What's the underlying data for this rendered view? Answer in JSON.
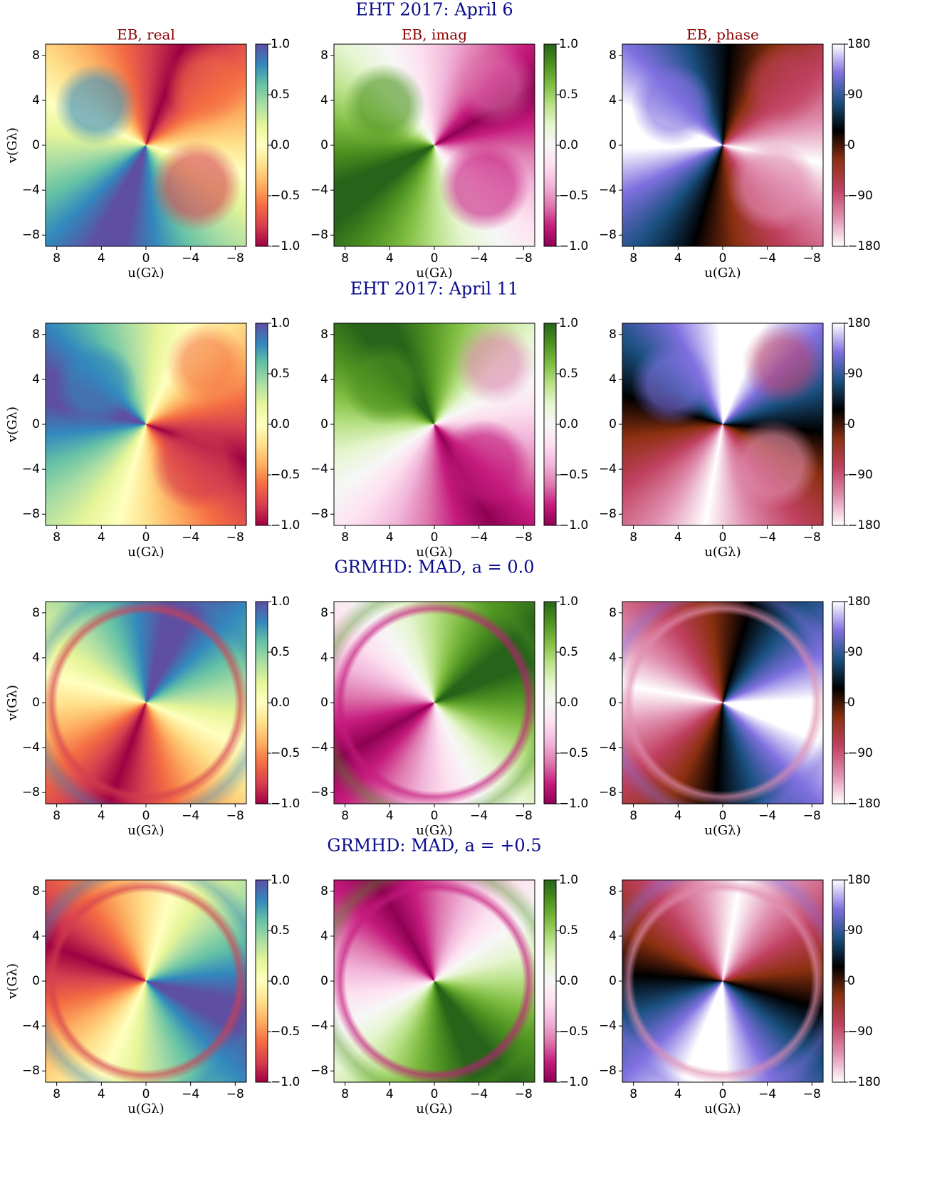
{
  "row_titles": [
    "EHT 2017: April 6",
    "EHT 2017: April 11",
    "GRMHD: MAD, a = 0.0",
    "GRMHD: MAD, a = +0.5"
  ],
  "chart_data": [
    {
      "type": "heatmap",
      "title": "EB, real",
      "xlabel": "u(Gλ)",
      "ylabel": "v(Gλ)",
      "xlim": [
        9,
        -9
      ],
      "ylim": [
        -9,
        9
      ],
      "xticks": [
        8,
        4,
        0,
        {
          "value": -4,
          "label": "−4"
        },
        {
          "value": -8,
          "label": "−8"
        }
      ],
      "yticks": [
        {
          "value": -8,
          "label": "−8"
        },
        {
          "value": -4,
          "label": "−4"
        },
        0,
        4,
        8
      ],
      "clim": [
        -1,
        1
      ],
      "cticks": [
        {
          "value": -1,
          "label": "−1.0"
        },
        {
          "value": -0.5,
          "label": "−0.5"
        },
        {
          "value": 0,
          "label": "0.0"
        },
        0.5,
        {
          "value": 1,
          "label": "1.0"
        }
      ],
      "colormap": [
        "#9e0142",
        "#d53e4f",
        "#f46d43",
        "#fdae61",
        "#fee08b",
        "#ffffbf",
        "#e6f598",
        "#abdda4",
        "#66c2a5",
        "#3288bd",
        "#5e4fa2"
      ]
    },
    {
      "type": "heatmap",
      "title": "EB, imag",
      "xlabel": "u(Gλ)",
      "xlim": [
        9,
        -9
      ],
      "ylim": [
        -9,
        9
      ],
      "xticks": [
        8,
        4,
        0,
        {
          "value": -4,
          "label": "−4"
        },
        {
          "value": -8,
          "label": "−8"
        }
      ],
      "yticks": [
        {
          "value": -8,
          "label": "−8"
        },
        {
          "value": -4,
          "label": "−4"
        },
        0,
        4,
        8
      ],
      "clim": [
        -1,
        1
      ],
      "cticks": [
        {
          "value": -1,
          "label": "−1.0"
        },
        {
          "value": -0.5,
          "label": "−0.5"
        },
        {
          "value": 0,
          "label": "0.0"
        },
        0.5,
        {
          "value": 1,
          "label": "1.0"
        }
      ],
      "colormap": [
        "#8e0152",
        "#c51b7d",
        "#de77ae",
        "#f1b6da",
        "#fde0ef",
        "#f7f7f7",
        "#e6f5d0",
        "#b8e186",
        "#7fbc41",
        "#4d9221",
        "#276419"
      ]
    },
    {
      "type": "heatmap",
      "title": "EB, phase",
      "xlabel": "u(Gλ)",
      "xlim": [
        9,
        -9
      ],
      "ylim": [
        -9,
        9
      ],
      "xticks": [
        8,
        4,
        0,
        {
          "value": -4,
          "label": "−4"
        },
        {
          "value": -8,
          "label": "−8"
        }
      ],
      "yticks": [
        {
          "value": -8,
          "label": "−8"
        },
        {
          "value": -4,
          "label": "−4"
        },
        0,
        4,
        8
      ],
      "clim": [
        -180,
        180
      ],
      "cticks": [
        {
          "value": -180,
          "label": "−180"
        },
        {
          "value": -90,
          "label": "−90"
        },
        0,
        90,
        180
      ],
      "colormap": [
        "#ffffff",
        "#e08fb0",
        "#c04060",
        "#8b3010",
        "#000000",
        "#1a5080",
        "#8070e0",
        "#ffffff"
      ]
    },
    {
      "type": "heatmap",
      "xlabel": "u(Gλ)",
      "ylabel": "v(Gλ)",
      "xlim": [
        9,
        -9
      ],
      "ylim": [
        -9,
        9
      ],
      "xticks": [
        8,
        4,
        0,
        {
          "value": -4,
          "label": "−4"
        },
        {
          "value": -8,
          "label": "−8"
        }
      ],
      "yticks": [
        {
          "value": -8,
          "label": "−8"
        },
        {
          "value": -4,
          "label": "−4"
        },
        0,
        4,
        8
      ],
      "clim": [
        -1,
        1
      ],
      "cticks": [
        {
          "value": -1,
          "label": "−1.0"
        },
        {
          "value": -0.5,
          "label": "−0.5"
        },
        {
          "value": 0,
          "label": "0.0"
        },
        0.5,
        {
          "value": 1,
          "label": "1.0"
        }
      ],
      "colormap": [
        "#9e0142",
        "#d53e4f",
        "#f46d43",
        "#fdae61",
        "#fee08b",
        "#ffffbf",
        "#e6f598",
        "#abdda4",
        "#66c2a5",
        "#3288bd",
        "#5e4fa2"
      ]
    },
    {
      "type": "heatmap",
      "xlabel": "u(Gλ)",
      "xlim": [
        9,
        -9
      ],
      "ylim": [
        -9,
        9
      ],
      "xticks": [
        8,
        4,
        0,
        {
          "value": -4,
          "label": "−4"
        },
        {
          "value": -8,
          "label": "−8"
        }
      ],
      "yticks": [
        {
          "value": -8,
          "label": "−8"
        },
        {
          "value": -4,
          "label": "−4"
        },
        0,
        4,
        8
      ],
      "clim": [
        -1,
        1
      ],
      "cticks": [
        {
          "value": -1,
          "label": "−1.0"
        },
        {
          "value": -0.5,
          "label": "−0.5"
        },
        {
          "value": 0,
          "label": "0.0"
        },
        0.5,
        {
          "value": 1,
          "label": "1.0"
        }
      ],
      "colormap": [
        "#8e0152",
        "#c51b7d",
        "#de77ae",
        "#f1b6da",
        "#fde0ef",
        "#f7f7f7",
        "#e6f5d0",
        "#b8e186",
        "#7fbc41",
        "#4d9221",
        "#276419"
      ]
    },
    {
      "type": "heatmap",
      "xlabel": "u(Gλ)",
      "xlim": [
        9,
        -9
      ],
      "ylim": [
        -9,
        9
      ],
      "xticks": [
        8,
        4,
        0,
        {
          "value": -4,
          "label": "−4"
        },
        {
          "value": -8,
          "label": "−8"
        }
      ],
      "yticks": [
        {
          "value": -8,
          "label": "−8"
        },
        {
          "value": -4,
          "label": "−4"
        },
        0,
        4,
        8
      ],
      "clim": [
        -180,
        180
      ],
      "cticks": [
        {
          "value": -180,
          "label": "−180"
        },
        {
          "value": -90,
          "label": "−90"
        },
        0,
        90,
        180
      ],
      "colormap": [
        "#ffffff",
        "#e08fb0",
        "#c04060",
        "#8b3010",
        "#000000",
        "#1a5080",
        "#8070e0",
        "#ffffff"
      ]
    },
    {
      "type": "heatmap",
      "xlabel": "u(Gλ)",
      "ylabel": "v(Gλ)",
      "xlim": [
        9,
        -9
      ],
      "ylim": [
        -9,
        9
      ],
      "xticks": [
        8,
        4,
        0,
        {
          "value": -4,
          "label": "−4"
        },
        {
          "value": -8,
          "label": "−8"
        }
      ],
      "yticks": [
        {
          "value": -8,
          "label": "−8"
        },
        {
          "value": -4,
          "label": "−4"
        },
        0,
        4,
        8
      ],
      "clim": [
        -1,
        1
      ],
      "cticks": [
        {
          "value": -1,
          "label": "−1.0"
        },
        {
          "value": -0.5,
          "label": "−0.5"
        },
        {
          "value": 0,
          "label": "0.0"
        },
        0.5,
        {
          "value": 1,
          "label": "1.0"
        }
      ],
      "colormap": [
        "#9e0142",
        "#d53e4f",
        "#f46d43",
        "#fdae61",
        "#fee08b",
        "#ffffbf",
        "#e6f598",
        "#abdda4",
        "#66c2a5",
        "#3288bd",
        "#5e4fa2"
      ]
    },
    {
      "type": "heatmap",
      "xlabel": "u(Gλ)",
      "xlim": [
        9,
        -9
      ],
      "ylim": [
        -9,
        9
      ],
      "xticks": [
        8,
        4,
        0,
        {
          "value": -4,
          "label": "−4"
        },
        {
          "value": -8,
          "label": "−8"
        }
      ],
      "yticks": [
        {
          "value": -8,
          "label": "−8"
        },
        {
          "value": -4,
          "label": "−4"
        },
        0,
        4,
        8
      ],
      "clim": [
        -1,
        1
      ],
      "cticks": [
        {
          "value": -1,
          "label": "−1.0"
        },
        {
          "value": -0.5,
          "label": "−0.5"
        },
        {
          "value": 0,
          "label": "0.0"
        },
        0.5,
        {
          "value": 1,
          "label": "1.0"
        }
      ],
      "colormap": [
        "#8e0152",
        "#c51b7d",
        "#de77ae",
        "#f1b6da",
        "#fde0ef",
        "#f7f7f7",
        "#e6f5d0",
        "#b8e186",
        "#7fbc41",
        "#4d9221",
        "#276419"
      ]
    },
    {
      "type": "heatmap",
      "xlabel": "u(Gλ)",
      "xlim": [
        9,
        -9
      ],
      "ylim": [
        -9,
        9
      ],
      "xticks": [
        8,
        4,
        0,
        {
          "value": -4,
          "label": "−4"
        },
        {
          "value": -8,
          "label": "−8"
        }
      ],
      "yticks": [
        {
          "value": -8,
          "label": "−8"
        },
        {
          "value": -4,
          "label": "−4"
        },
        0,
        4,
        8
      ],
      "clim": [
        -180,
        180
      ],
      "cticks": [
        {
          "value": -180,
          "label": "−180"
        },
        {
          "value": -90,
          "label": "−90"
        },
        0,
        90,
        180
      ],
      "colormap": [
        "#ffffff",
        "#e08fb0",
        "#c04060",
        "#8b3010",
        "#000000",
        "#1a5080",
        "#8070e0",
        "#ffffff"
      ]
    },
    {
      "type": "heatmap",
      "xlabel": "u(Gλ)",
      "ylabel": "v(Gλ)",
      "xlim": [
        9,
        -9
      ],
      "ylim": [
        -9,
        9
      ],
      "xticks": [
        8,
        4,
        0,
        {
          "value": -4,
          "label": "−4"
        },
        {
          "value": -8,
          "label": "−8"
        }
      ],
      "yticks": [
        {
          "value": -8,
          "label": "−8"
        },
        {
          "value": -4,
          "label": "−4"
        },
        0,
        4,
        8
      ],
      "clim": [
        -1,
        1
      ],
      "cticks": [
        {
          "value": -1,
          "label": "−1.0"
        },
        {
          "value": -0.5,
          "label": "−0.5"
        },
        {
          "value": 0,
          "label": "0.0"
        },
        0.5,
        {
          "value": 1,
          "label": "1.0"
        }
      ],
      "colormap": [
        "#9e0142",
        "#d53e4f",
        "#f46d43",
        "#fdae61",
        "#fee08b",
        "#ffffbf",
        "#e6f598",
        "#abdda4",
        "#66c2a5",
        "#3288bd",
        "#5e4fa2"
      ]
    },
    {
      "type": "heatmap",
      "xlabel": "u(Gλ)",
      "xlim": [
        9,
        -9
      ],
      "ylim": [
        -9,
        9
      ],
      "xticks": [
        8,
        4,
        0,
        {
          "value": -4,
          "label": "−4"
        },
        {
          "value": -8,
          "label": "−8"
        }
      ],
      "yticks": [
        {
          "value": -8,
          "label": "−8"
        },
        {
          "value": -4,
          "label": "−4"
        },
        0,
        4,
        8
      ],
      "clim": [
        -1,
        1
      ],
      "cticks": [
        {
          "value": -1,
          "label": "−1.0"
        },
        {
          "value": -0.5,
          "label": "−0.5"
        },
        {
          "value": 0,
          "label": "0.0"
        },
        0.5,
        {
          "value": 1,
          "label": "1.0"
        }
      ],
      "colormap": [
        "#8e0152",
        "#c51b7d",
        "#de77ae",
        "#f1b6da",
        "#fde0ef",
        "#f7f7f7",
        "#e6f5d0",
        "#b8e186",
        "#7fbc41",
        "#4d9221",
        "#276419"
      ]
    },
    {
      "type": "heatmap",
      "xlabel": "u(Gλ)",
      "xlim": [
        9,
        -9
      ],
      "ylim": [
        -9,
        9
      ],
      "xticks": [
        8,
        4,
        0,
        {
          "value": -4,
          "label": "−4"
        },
        {
          "value": -8,
          "label": "−8"
        }
      ],
      "yticks": [
        {
          "value": -8,
          "label": "−8"
        },
        {
          "value": -4,
          "label": "−4"
        },
        0,
        4,
        8
      ],
      "clim": [
        -180,
        180
      ],
      "cticks": [
        {
          "value": -180,
          "label": "−180"
        },
        {
          "value": -90,
          "label": "−90"
        },
        0,
        90,
        180
      ],
      "colormap": [
        "#ffffff",
        "#e08fb0",
        "#c04060",
        "#8b3010",
        "#000000",
        "#1a5080",
        "#8070e0",
        "#ffffff"
      ]
    }
  ]
}
